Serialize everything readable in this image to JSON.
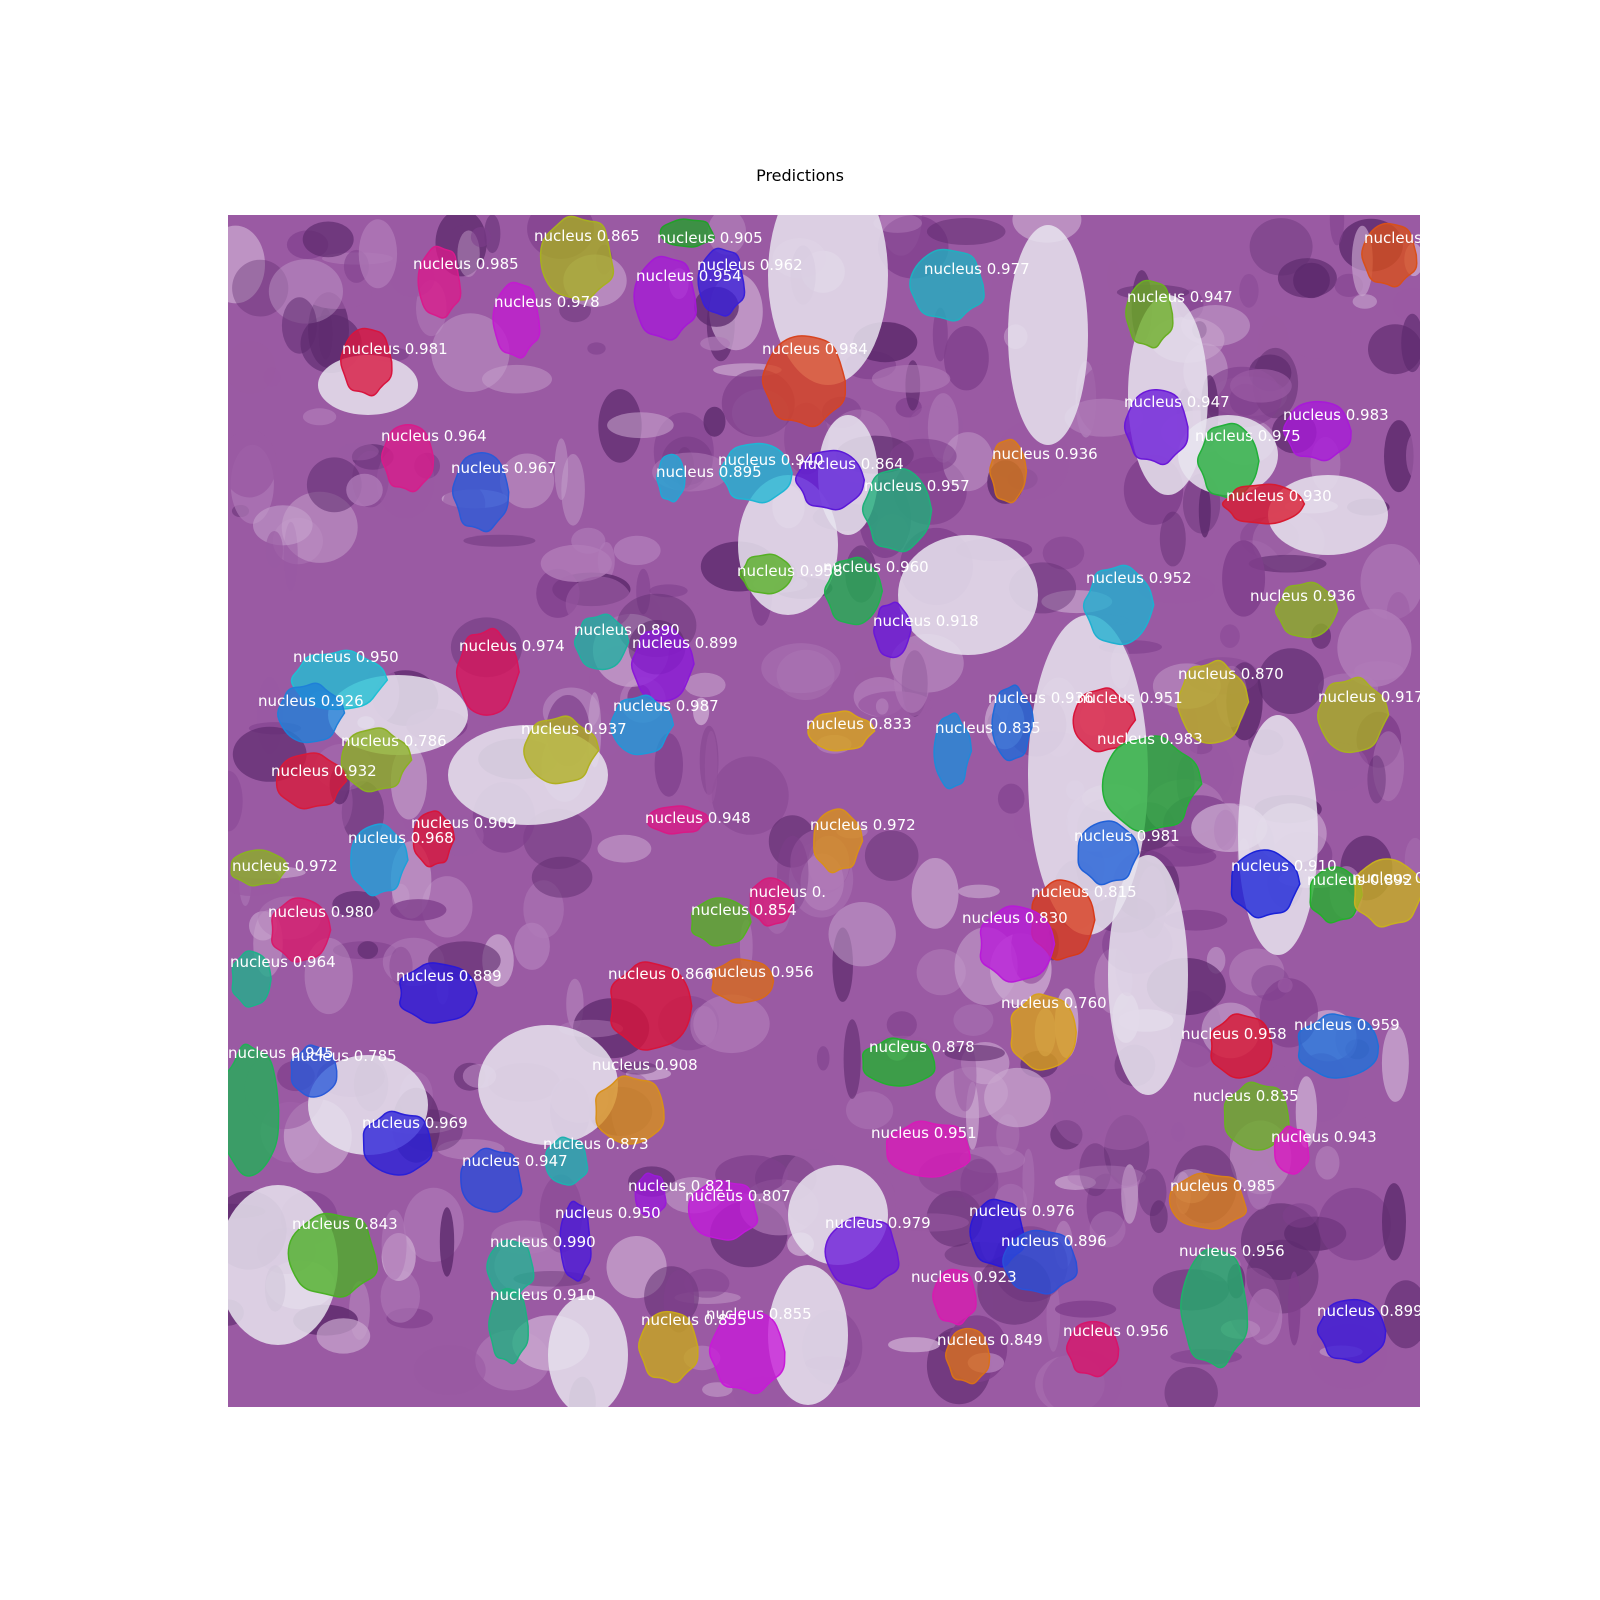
{
  "title": "Predictions",
  "image": {
    "description_icon": "he-stained-tissue",
    "tissue_colors": [
      "#9a5aa3",
      "#7f3f8c",
      "#b07bb8",
      "#5d2a6d",
      "#c9a6cf"
    ],
    "background_color": "#e8e4ee"
  },
  "detections": [
    {
      "label": "nucleus 0.865",
      "color": "#a7b020"
    },
    {
      "label": "nucleus 0.905",
      "color": "#22a02a"
    },
    {
      "label": "nucleus 0.985",
      "color": "#d81b8c"
    },
    {
      "label": "nucleus 0.962",
      "color": "#3a20d8"
    },
    {
      "label": "nucleus 0.954",
      "color": "#a519d6"
    },
    {
      "label": "nucleus 0.978",
      "color": "#c21bd0"
    },
    {
      "label": "nucleus 0.977",
      "color": "#1fb0c0"
    },
    {
      "label": "nucleus 0.947",
      "color": "#6aae23"
    },
    {
      "label": "nucleus",
      "color": "#d8501a"
    },
    {
      "label": "nucleus 0.981",
      "color": "#d8143e"
    },
    {
      "label": "nucleus 0.984",
      "color": "#d8441f"
    },
    {
      "label": "nucleus 0.947",
      "color": "#6a18d8"
    },
    {
      "label": "nucleus 0.983",
      "color": "#a81ad8"
    },
    {
      "label": "nucleus 0.964",
      "color": "#d81b8a"
    },
    {
      "label": "nucleus 0.967",
      "color": "#2a5ad8"
    },
    {
      "label": "nucleus 0.895",
      "color": "#1fa8d6"
    },
    {
      "label": "nucleus 0.940",
      "color": "#1fb6d4"
    },
    {
      "label": "nucleus 0.864",
      "color": "#5a18d8"
    },
    {
      "label": "nucleus 0.957",
      "color": "#1fb07a"
    },
    {
      "label": "nucleus 0.936",
      "color": "#d87a1a"
    },
    {
      "label": "nucleus 0.975",
      "color": "#22b03a"
    },
    {
      "label": "nucleus 0.930",
      "color": "#d81a30"
    },
    {
      "label": "nucleus 0.958",
      "color": "#56b024"
    },
    {
      "label": "nucleus 0.960",
      "color": "#20b050"
    },
    {
      "label": "nucleus 0.952",
      "color": "#1fb0d0"
    },
    {
      "label": "nucleus 0.936",
      "color": "#8aaf22"
    },
    {
      "label": "nucleus 0.918",
      "color": "#6a18d8"
    },
    {
      "label": "nucleus 0.890",
      "color": "#1fb0a0"
    },
    {
      "label": "nucleus 0.899",
      "color": "#8a18d8"
    },
    {
      "label": "nucleus 0.974",
      "color": "#d8145a"
    },
    {
      "label": "nucleus 0.950",
      "color": "#1fc0d4"
    },
    {
      "label": "nucleus 0.870",
      "color": "#bab020"
    },
    {
      "label": "nucleus 0.917",
      "color": "#a8b020"
    },
    {
      "label": "nucleus 0.926",
      "color": "#1f80d8"
    },
    {
      "label": "nucleus 0.987",
      "color": "#1f98d8"
    },
    {
      "label": "nucleus 0.937",
      "color": "#b0b020"
    },
    {
      "label": "nucleus 0.833",
      "color": "#d8a41a"
    },
    {
      "label": "nucleus 0.936",
      "color": "#1f6ad8"
    },
    {
      "label": "nucleus 0.835",
      "color": "#1f8ad8"
    },
    {
      "label": "nucleus 0.951",
      "color": "#d8143a"
    },
    {
      "label": "nucleus 0.983",
      "color": "#22b036"
    },
    {
      "label": "nucleus 0.786",
      "color": "#8ab022"
    },
    {
      "label": "nucleus 0.932",
      "color": "#d81a3a"
    },
    {
      "label": "nucleus 0.948",
      "color": "#d81a86"
    },
    {
      "label": "nucleus 0.909",
      "color": "#d8143a"
    },
    {
      "label": "nucleus 0.968",
      "color": "#1fa0d8"
    },
    {
      "label": "nucleus 0.972",
      "color": "#d8901a"
    },
    {
      "label": "nucleus 0.981",
      "color": "#1f60d8"
    },
    {
      "label": "nucleus 0.972",
      "color": "#8ab024"
    },
    {
      "label": "nucleus 0.910",
      "color": "#1a22d8"
    },
    {
      "label": "nucleus 0.892",
      "color": "#22b02a"
    },
    {
      "label": "nucleus 0.889",
      "color": "#c8b020"
    },
    {
      "label": "nucleus 0.",
      "color": "#d81a7a"
    },
    {
      "label": "nucleus 0.854",
      "color": "#56b024"
    },
    {
      "label": "nucleus 0.815",
      "color": "#d83a1a"
    },
    {
      "label": "nucleus 0.980",
      "color": "#d81a6a"
    },
    {
      "label": "nucleus 0.830",
      "color": "#b81ad8"
    },
    {
      "label": "nucleus 0.964",
      "color": "#1fb08a"
    },
    {
      "label": "nucleus 0.889",
      "color": "#2a18d8"
    },
    {
      "label": "nucleus 0.866",
      "color": "#d8143a"
    },
    {
      "label": "nucleus 0.956",
      "color": "#d86a1a"
    },
    {
      "label": "nucleus 0.760",
      "color": "#d8a01a"
    },
    {
      "label": "nucleus 0.958",
      "color": "#d81430"
    },
    {
      "label": "nucleus 0.959",
      "color": "#1f70d8"
    },
    {
      "label": "nucleus 0.945",
      "color": "#20b056"
    },
    {
      "label": "nucleus 0.785",
      "color": "#2a5ad8"
    },
    {
      "label": "nucleus 0.908",
      "color": "#d8901a"
    },
    {
      "label": "nucleus 0.878",
      "color": "#22b030"
    },
    {
      "label": "nucleus 0.835",
      "color": "#6ab024"
    },
    {
      "label": "nucleus 0.969",
      "color": "#2a20d8"
    },
    {
      "label": "nucleus 0.951",
      "color": "#d81ab8"
    },
    {
      "label": "nucleus 0.943",
      "color": "#d81ac0"
    },
    {
      "label": "nucleus 0.873",
      "color": "#1fb0b0"
    },
    {
      "label": "nucleus 0.947",
      "color": "#2a4ad8"
    },
    {
      "label": "nucleus 0.821",
      "color": "#9a1ad8"
    },
    {
      "label": "nucleus 0.807",
      "color": "#c01ad8"
    },
    {
      "label": "nucleus 0.985",
      "color": "#d8801a"
    },
    {
      "label": "nucleus 0.950",
      "color": "#4a18d8"
    },
    {
      "label": "nucleus 0.843",
      "color": "#4ab024"
    },
    {
      "label": "nucleus 0.979",
      "color": "#6a18d8"
    },
    {
      "label": "nucleus 0.976",
      "color": "#2a18d8"
    },
    {
      "label": "nucleus 0.990",
      "color": "#1fb090"
    },
    {
      "label": "nucleus 0.896",
      "color": "#2a50d8"
    },
    {
      "label": "nucleus 0.956",
      "color": "#20b06a"
    },
    {
      "label": "nucleus 0.923",
      "color": "#d81ab0"
    },
    {
      "label": "nucleus 0.910",
      "color": "#1fb080"
    },
    {
      "label": "nucleus 0.855",
      "color": "#c8a81a"
    },
    {
      "label": "nucleus 0.855",
      "color": "#c81ad8"
    },
    {
      "label": "nucleus 0.849",
      "color": "#d8701a"
    },
    {
      "label": "nucleus 0.956",
      "color": "#d8146a"
    },
    {
      "label": "nucleus 0.899",
      "color": "#3a18d8"
    },
    {
      "label": "nucleus 0.982",
      "color": "#d8144a"
    }
  ]
}
